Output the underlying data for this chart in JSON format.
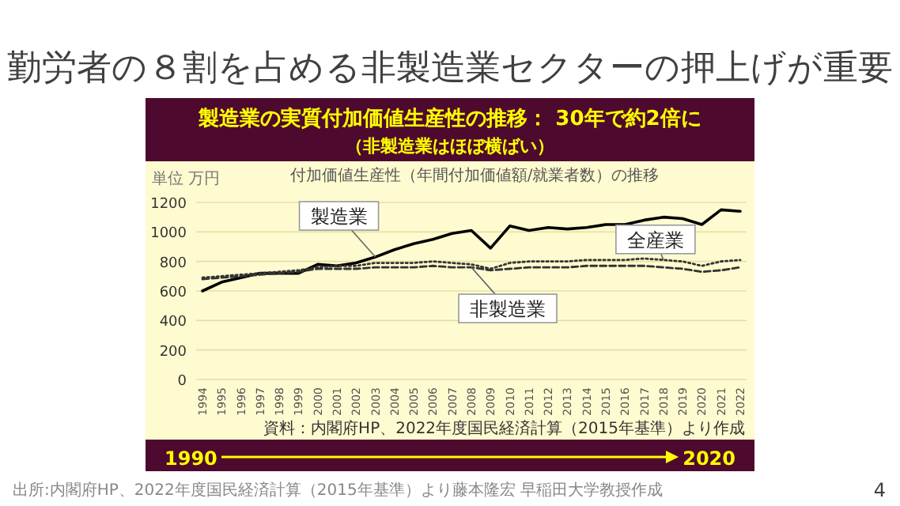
{
  "chart_data": {
    "type": "line",
    "title": "勤労者の８割を占める非製造業セクターの押上げが重要",
    "subtitle": "製造業の実質付加価値生産性の推移： 30年で約2倍に",
    "ylabel": "単位 万円",
    "annotations": [
      "（非製造業はほぼ横ばい）",
      "付加価値生産性（年間付加価値額/就業者数）の推移",
      "資料：内閣府HP、2022年度国民経済計算（2015年基準）より作成",
      "1990",
      "2020",
      "出所:内閣府HP、2022年度国民経済計算（2015年基準）より藤本隆宏 早稲田大学教授作成",
      "4"
    ],
    "categories": [
      "1994",
      "1995",
      "1996",
      "1997",
      "1998",
      "1999",
      "2000",
      "2001",
      "2002",
      "2003",
      "2004",
      "2005",
      "2006",
      "2007",
      "2008",
      "2009",
      "2010",
      "2011",
      "2012",
      "2013",
      "2014",
      "2015",
      "2016",
      "2017",
      "2018",
      "2019",
      "2020",
      "2021",
      "2022"
    ],
    "series": [
      {
        "name": "製造業",
        "color": "#000000",
        "line_style": "solid",
        "values": [
          600,
          660,
          690,
          720,
          720,
          720,
          780,
          770,
          790,
          830,
          880,
          920,
          950,
          990,
          1010,
          890,
          1040,
          1010,
          1030,
          1020,
          1030,
          1050,
          1050,
          1080,
          1100,
          1090,
          1050,
          1150,
          1140
        ]
      },
      {
        "name": "全産業",
        "color": "#333333",
        "line_style": "dotted",
        "values": [
          690,
          700,
          710,
          720,
          730,
          740,
          760,
          770,
          770,
          790,
          790,
          790,
          800,
          790,
          780,
          750,
          790,
          800,
          800,
          800,
          810,
          810,
          810,
          820,
          810,
          800,
          770,
          800,
          810
        ]
      },
      {
        "name": "非製造業",
        "color": "#333333",
        "line_style": "dashed",
        "values": [
          680,
          690,
          700,
          710,
          720,
          730,
          750,
          750,
          750,
          760,
          760,
          760,
          770,
          760,
          760,
          740,
          750,
          760,
          760,
          760,
          770,
          770,
          770,
          770,
          760,
          750,
          730,
          740,
          760
        ]
      }
    ],
    "ylim": [
      0,
      1200
    ],
    "yticks": [
      0,
      200,
      400,
      600,
      800,
      1000,
      1200
    ],
    "grid": "y",
    "legend": false,
    "marker": "none"
  }
}
